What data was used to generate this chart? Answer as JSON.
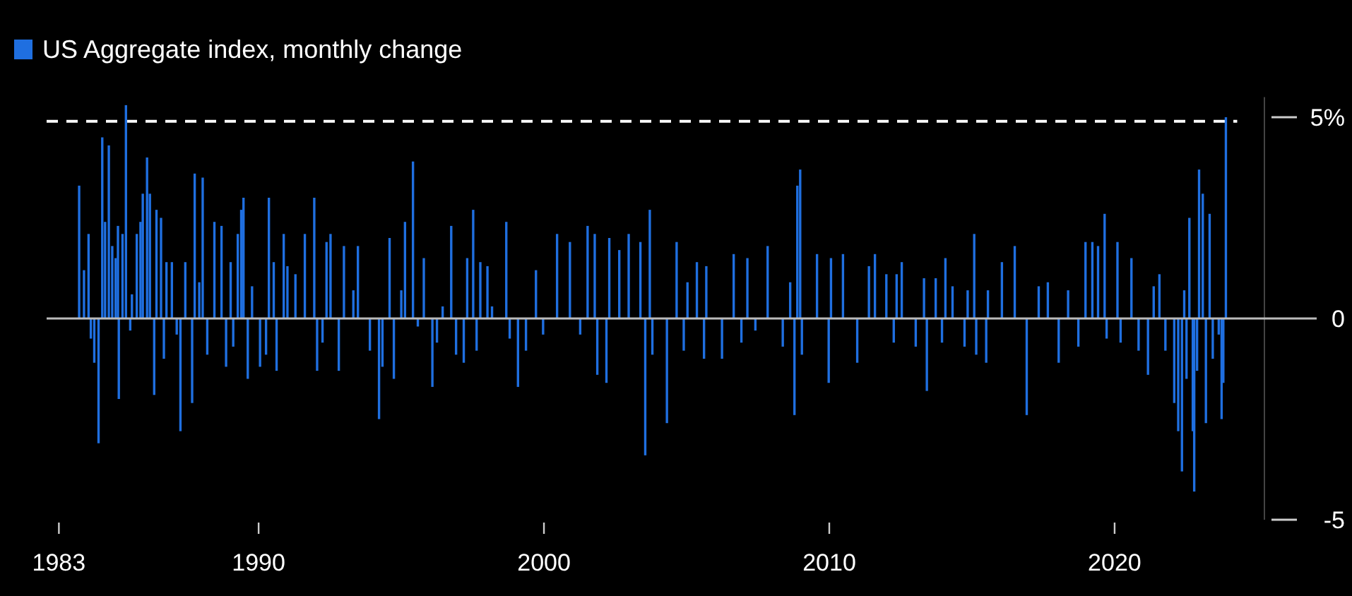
{
  "chart_data": {
    "type": "bar",
    "legend": "top left",
    "xlim": [
      1982.57,
      2025.25
    ],
    "xticks": [
      1983,
      1990,
      2000,
      2010,
      2020
    ],
    "ylim": [
      -5,
      5.5
    ],
    "yticks": [
      {
        "value": 5,
        "label": "5%"
      },
      0,
      {
        "value": -5,
        "label": "-5"
      }
    ],
    "ref_lines": [
      {
        "axis": "y",
        "value": 4.9,
        "color": "#ffffff",
        "line_style": "dashed"
      }
    ],
    "x": [
      1983.71,
      1983.88,
      1984.04,
      1984.12,
      1984.24,
      1984.39,
      1984.52,
      1984.62,
      1984.75,
      1984.87,
      1984.99,
      1985.07,
      1985.1,
      1985.23,
      1985.35,
      1985.5,
      1985.56,
      1985.73,
      1985.86,
      1985.94,
      1986.09,
      1986.19,
      1986.34,
      1986.42,
      1986.58,
      1986.68,
      1986.77,
      1986.96,
      1987.13,
      1987.26,
      1987.43,
      1987.67,
      1987.76,
      1987.92,
      1988.04,
      1988.2,
      1988.45,
      1988.7,
      1988.86,
      1989.02,
      1989.11,
      1989.27,
      1989.39,
      1989.47,
      1989.62,
      1989.77,
      1990.05,
      1990.26,
      1990.36,
      1990.53,
      1990.63,
      1990.88,
      1991.01,
      1991.29,
      1991.62,
      1991.95,
      1992.05,
      1992.24,
      1992.38,
      1992.52,
      1992.81,
      1992.99,
      1993.32,
      1993.48,
      1993.9,
      1994.22,
      1994.34,
      1994.59,
      1994.74,
      1995.0,
      1995.13,
      1995.41,
      1995.58,
      1995.79,
      1996.09,
      1996.25,
      1996.45,
      1996.75,
      1996.92,
      1997.19,
      1997.31,
      1997.52,
      1997.64,
      1997.77,
      1998.02,
      1998.18,
      1998.68,
      1998.8,
      1999.09,
      1999.37,
      1999.72,
      1999.97,
      2000.46,
      2000.91,
      2001.27,
      2001.53,
      2001.78,
      2001.87,
      2002.19,
      2002.29,
      2002.64,
      2002.97,
      2003.38,
      2003.55,
      2003.71,
      2003.8,
      2004.31,
      2004.65,
      2004.9,
      2005.03,
      2005.36,
      2005.61,
      2005.69,
      2006.24,
      2006.65,
      2006.92,
      2007.13,
      2007.41,
      2007.84,
      2008.37,
      2008.63,
      2008.78,
      2008.88,
      2008.98,
      2009.04,
      2009.57,
      2009.98,
      2010.06,
      2010.48,
      2010.98,
      2011.39,
      2011.6,
      2012.0,
      2012.26,
      2012.36,
      2012.54,
      2013.03,
      2013.32,
      2013.42,
      2013.73,
      2013.95,
      2014.07,
      2014.32,
      2014.74,
      2014.85,
      2015.08,
      2015.15,
      2015.5,
      2015.56,
      2016.05,
      2016.5,
      2016.92,
      2017.34,
      2017.66,
      2018.04,
      2018.37,
      2018.73,
      2018.98,
      2019.22,
      2019.42,
      2019.65,
      2019.72,
      2020.1,
      2020.21,
      2020.59,
      2020.84,
      2021.17,
      2021.37,
      2021.57,
      2021.78,
      2022.09,
      2022.23,
      2022.36,
      2022.44,
      2022.52,
      2022.62,
      2022.74,
      2022.79,
      2022.89,
      2022.96,
      2023.09,
      2023.2,
      2023.33,
      2023.44,
      2023.65,
      2023.75,
      2023.81,
      2023.9
    ],
    "series": [
      {
        "name": "US Aggregate index, monthly change",
        "color": "#1f6fe0",
        "values": [
          3.3,
          1.2,
          2.1,
          -0.5,
          -1.1,
          -3.1,
          4.5,
          2.4,
          4.3,
          1.8,
          1.5,
          2.3,
          -2.0,
          2.1,
          5.3,
          -0.3,
          0.6,
          2.1,
          2.4,
          3.1,
          4.0,
          3.1,
          -1.9,
          2.7,
          2.5,
          -1.0,
          1.4,
          1.4,
          -0.4,
          -2.8,
          1.4,
          -2.1,
          3.6,
          0.9,
          3.5,
          -0.9,
          2.4,
          2.3,
          -1.2,
          1.4,
          -0.7,
          2.1,
          2.7,
          3.0,
          -1.5,
          0.8,
          -1.2,
          -0.9,
          3.0,
          1.4,
          -1.3,
          2.1,
          1.3,
          1.1,
          2.1,
          3.0,
          -1.3,
          -0.6,
          1.9,
          2.1,
          -1.3,
          1.8,
          0.7,
          1.8,
          -0.8,
          -2.5,
          -1.2,
          2.0,
          -1.5,
          0.7,
          2.4,
          3.9,
          -0.2,
          1.5,
          -1.7,
          -0.6,
          0.3,
          2.3,
          -0.9,
          -1.1,
          1.5,
          2.7,
          -0.8,
          1.4,
          1.3,
          0.3,
          2.4,
          -0.5,
          -1.7,
          -0.8,
          1.2,
          -0.4,
          2.1,
          1.9,
          -0.4,
          2.3,
          2.1,
          -1.4,
          -1.6,
          2.0,
          1.7,
          2.1,
          1.9,
          -3.4,
          2.7,
          -0.9,
          -2.6,
          1.9,
          -0.8,
          0.9,
          1.4,
          -1.0,
          1.3,
          -1.0,
          1.6,
          -0.6,
          1.5,
          -0.3,
          1.8,
          -0.7,
          0.9,
          -2.4,
          3.3,
          3.7,
          -0.9,
          1.6,
          -1.6,
          1.5,
          1.6,
          -1.1,
          1.3,
          1.6,
          1.1,
          -0.6,
          1.1,
          1.4,
          -0.7,
          1.0,
          -1.8,
          1.0,
          -0.6,
          1.5,
          0.8,
          -0.7,
          0.7,
          2.1,
          -0.9,
          -1.1,
          0.7,
          1.4,
          1.8,
          -2.4,
          0.8,
          0.9,
          -1.1,
          0.7,
          -0.7,
          1.9,
          1.9,
          1.8,
          2.6,
          -0.5,
          1.9,
          -0.6,
          1.5,
          -0.8,
          -1.4,
          0.8,
          1.1,
          -0.8,
          -2.1,
          -2.8,
          -3.8,
          0.7,
          -1.5,
          2.5,
          -2.8,
          -4.3,
          -1.3,
          3.7,
          3.1,
          -2.6,
          2.6,
          -1.0,
          -0.4,
          -2.5,
          -1.6,
          5.0
        ]
      }
    ]
  }
}
